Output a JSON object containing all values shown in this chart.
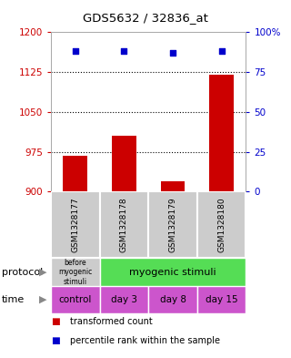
{
  "title": "GDS5632 / 32836_at",
  "samples": [
    "GSM1328177",
    "GSM1328178",
    "GSM1328179",
    "GSM1328180"
  ],
  "bar_values": [
    968,
    1005,
    920,
    1120
  ],
  "bar_bottom": 900,
  "percentile_values": [
    88,
    88,
    87,
    88
  ],
  "left_ylim": [
    900,
    1200
  ],
  "right_ylim": [
    0,
    100
  ],
  "left_yticks": [
    900,
    975,
    1050,
    1125,
    1200
  ],
  "right_yticks": [
    0,
    25,
    50,
    75,
    100
  ],
  "right_yticklabels": [
    "0",
    "25",
    "50",
    "75",
    "100%"
  ],
  "dotted_lines": [
    975,
    1050,
    1125
  ],
  "bar_color": "#cc0000",
  "dot_color": "#0000cc",
  "protocol_labels": [
    "before\nmyogenic\nstimuli",
    "myogenic stimuli"
  ],
  "protocol_colors": [
    "#cccccc",
    "#55dd55"
  ],
  "time_labels": [
    "control",
    "day 3",
    "day 8",
    "day 15"
  ],
  "time_color": "#cc55cc",
  "legend_red": "transformed count",
  "legend_blue": "percentile rank within the sample",
  "sample_box_color": "#cccccc",
  "bg_color": "#ffffff"
}
